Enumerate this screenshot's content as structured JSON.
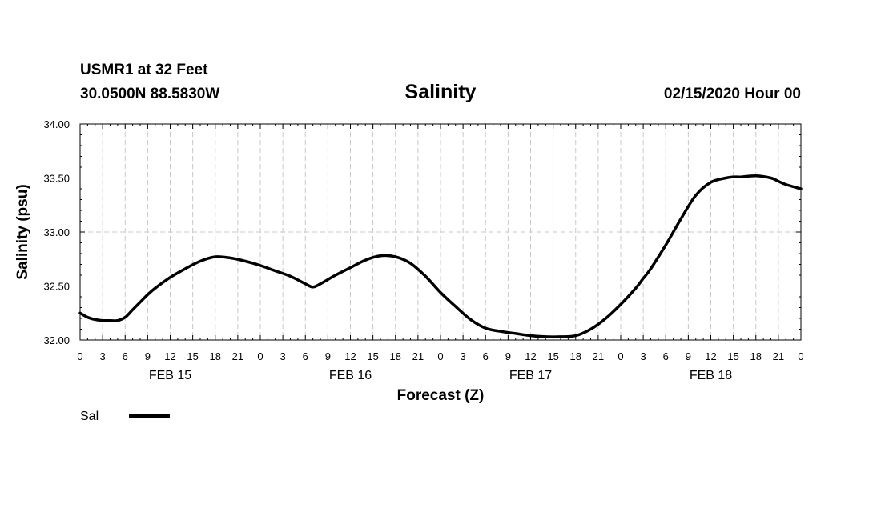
{
  "header": {
    "station": "USMR1 at 32 Feet",
    "coords": "30.0500N 88.5830W",
    "title": "Salinity",
    "stamp": "02/15/2020 Hour 00"
  },
  "chart_data": {
    "type": "line",
    "title": "Salinity",
    "xlabel": "Forecast (Z)",
    "ylabel": "Salinity (psu)",
    "ylim": [
      32.0,
      34.0
    ],
    "xlim_hours": [
      0,
      96
    ],
    "y_ticks": [
      "32.00",
      "32.50",
      "33.00",
      "33.50",
      "34.00"
    ],
    "x_tick_labels": [
      "0",
      "3",
      "6",
      "9",
      "12",
      "15",
      "18",
      "21",
      "0",
      "3",
      "6",
      "9",
      "12",
      "15",
      "18",
      "21",
      "0",
      "3",
      "6",
      "9",
      "12",
      "15",
      "18",
      "21",
      "0",
      "3",
      "6",
      "9",
      "12",
      "15",
      "18",
      "21",
      "0"
    ],
    "day_labels": [
      {
        "label": "FEB 15",
        "hour": 12
      },
      {
        "label": "FEB 16",
        "hour": 36
      },
      {
        "label": "FEB 17",
        "hour": 60
      },
      {
        "label": "FEB 18",
        "hour": 84
      }
    ],
    "grid": true,
    "legend_position": "bottom-left",
    "series": [
      {
        "name": "Sal",
        "color": "#000000",
        "x": [
          0,
          1,
          2,
          3,
          4,
          5,
          6,
          7,
          8,
          9,
          10,
          12,
          14,
          16,
          18,
          20,
          22,
          24,
          26,
          28,
          30,
          31,
          32,
          34,
          36,
          38,
          40,
          42,
          44,
          46,
          48,
          50,
          52,
          54,
          56,
          58,
          60,
          62,
          64,
          66,
          68,
          70,
          72,
          74,
          75,
          76,
          78,
          80,
          82,
          84,
          86,
          87,
          88,
          90,
          92,
          93,
          94,
          96
        ],
        "values": [
          32.25,
          32.21,
          32.19,
          32.18,
          32.18,
          32.18,
          32.21,
          32.28,
          32.35,
          32.42,
          32.48,
          32.58,
          32.66,
          32.73,
          32.77,
          32.76,
          32.73,
          32.69,
          32.64,
          32.59,
          32.52,
          32.49,
          32.52,
          32.6,
          32.67,
          32.74,
          32.78,
          32.77,
          32.71,
          32.59,
          32.44,
          32.31,
          32.19,
          32.11,
          32.08,
          32.06,
          32.04,
          32.03,
          32.03,
          32.04,
          32.1,
          32.2,
          32.33,
          32.48,
          32.57,
          32.66,
          32.88,
          33.12,
          33.34,
          33.46,
          33.5,
          33.51,
          33.51,
          33.52,
          33.5,
          33.47,
          33.44,
          33.4
        ]
      }
    ]
  },
  "legend": {
    "label": "Sal"
  }
}
